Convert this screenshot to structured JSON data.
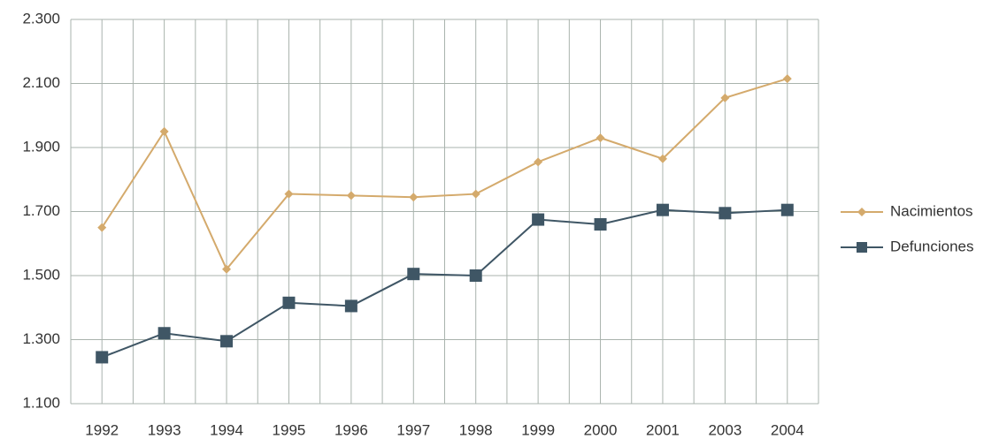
{
  "chart_data": {
    "type": "line",
    "categories": [
      "1992",
      "1993",
      "1994",
      "1995",
      "1996",
      "1997",
      "1998",
      "1999",
      "2000",
      "2001",
      "2003",
      "2004"
    ],
    "series": [
      {
        "name": "Nacimientos",
        "color": "#d4aa6c",
        "marker": "diamond",
        "values": [
          1650,
          1950,
          1520,
          1755,
          1750,
          1745,
          1755,
          1855,
          1930,
          1865,
          2055,
          2115
        ]
      },
      {
        "name": "Defunciones",
        "color": "#3f5665",
        "marker": "square",
        "values": [
          1245,
          1320,
          1295,
          1415,
          1405,
          1505,
          1500,
          1675,
          1660,
          1705,
          1695,
          1705
        ]
      }
    ],
    "ylim": [
      1100,
      2300
    ],
    "yticks": [
      {
        "value": 1100,
        "label": "1.100"
      },
      {
        "value": 1300,
        "label": "1.300"
      },
      {
        "value": 1500,
        "label": "1.500"
      },
      {
        "value": 1700,
        "label": "1.700"
      },
      {
        "value": 1900,
        "label": "1.900"
      },
      {
        "value": 2100,
        "label": "2.100"
      },
      {
        "value": 2300,
        "label": "2.300"
      }
    ],
    "grid": true,
    "legend": "right"
  }
}
